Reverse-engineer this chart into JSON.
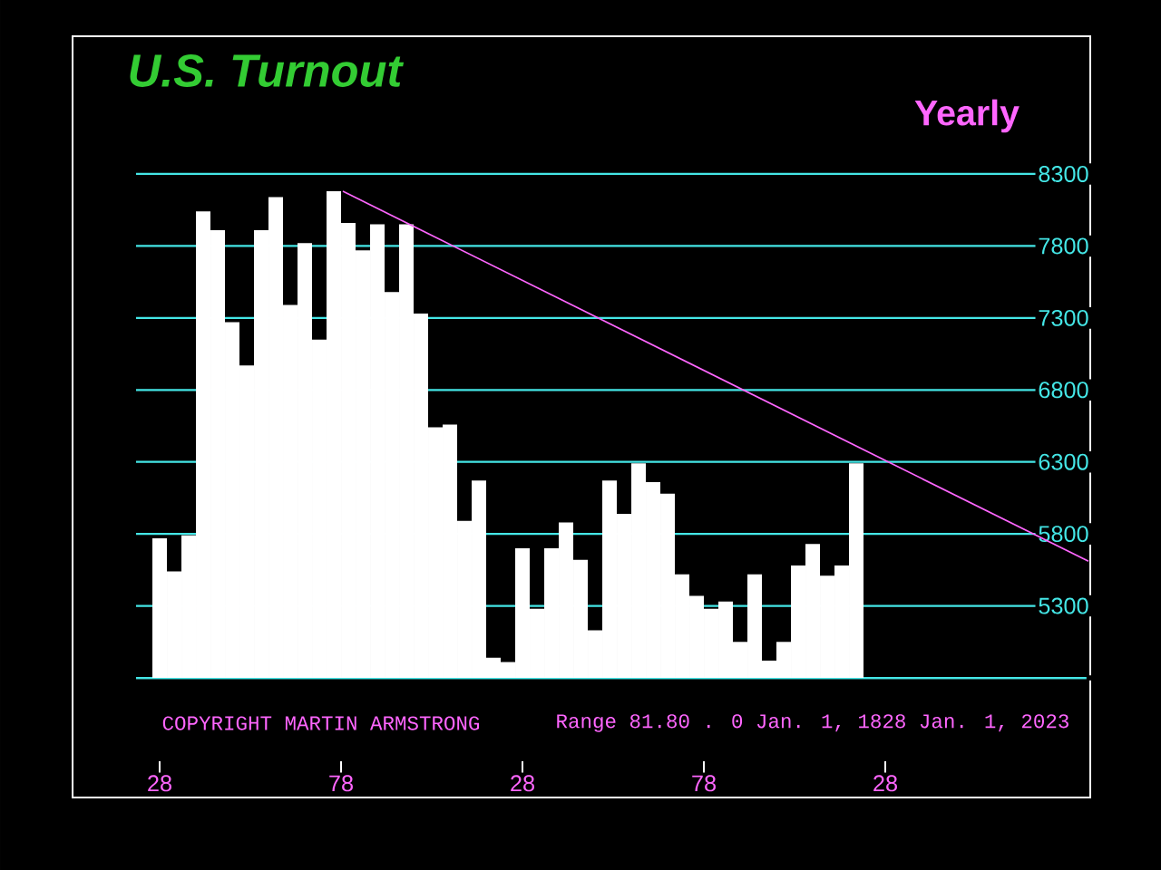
{
  "chart_data": {
    "type": "bar",
    "title": "U.S. Turnout",
    "subtitle": "Yearly",
    "annotations": [
      "COPYRIGHT MARTIN ARMSTRONG",
      "Range 81.80 . 0 Jan. 1, 1828 Jan. 1, 2023"
    ],
    "x": [
      1828,
      1832,
      1836,
      1840,
      1844,
      1848,
      1852,
      1856,
      1860,
      1864,
      1868,
      1872,
      1876,
      1880,
      1884,
      1888,
      1892,
      1896,
      1900,
      1904,
      1908,
      1912,
      1916,
      1920,
      1924,
      1928,
      1932,
      1936,
      1940,
      1944,
      1948,
      1952,
      1956,
      1960,
      1964,
      1968,
      1972,
      1976,
      1980,
      1984,
      1988,
      1992,
      1996,
      2000,
      2004,
      2008,
      2012,
      2016,
      2020
    ],
    "series": [
      {
        "color": "#ffffff",
        "values": [
          5770,
          5540,
          5790,
          8040,
          7910,
          7270,
          6970,
          7910,
          8140,
          7390,
          7820,
          7150,
          8180,
          7960,
          7770,
          7950,
          7480,
          7950,
          7330,
          6540,
          6560,
          5890,
          6170,
          4940,
          4910,
          5700,
          5280,
          5700,
          5880,
          5620,
          5130,
          6170,
          5940,
          6290,
          6160,
          6080,
          5520,
          5370,
          5280,
          5330,
          5050,
          5520,
          4920,
          5050,
          5580,
          5730,
          5510,
          5580,
          6290
        ]
      },
      {
        "type": "line",
        "color": "#ff66ff",
        "x": [
          1878.5,
          2084
        ],
        "values": [
          8180,
          5610
        ]
      }
    ],
    "xlim": [
      1821.5,
      2084
    ],
    "ylim": [
      4800,
      8300
    ],
    "xticks": [
      {
        "value": 1828,
        "label": "28"
      },
      {
        "value": 1878,
        "label": "78"
      },
      {
        "value": 1928,
        "label": "28"
      },
      {
        "value": 1978,
        "label": "78"
      },
      {
        "value": 2028,
        "label": "28"
      }
    ],
    "yticks": [
      {
        "value": 4800,
        "label": null
      },
      5300,
      5800,
      6300,
      6800,
      7300,
      7800,
      8300
    ],
    "grid": "y"
  }
}
